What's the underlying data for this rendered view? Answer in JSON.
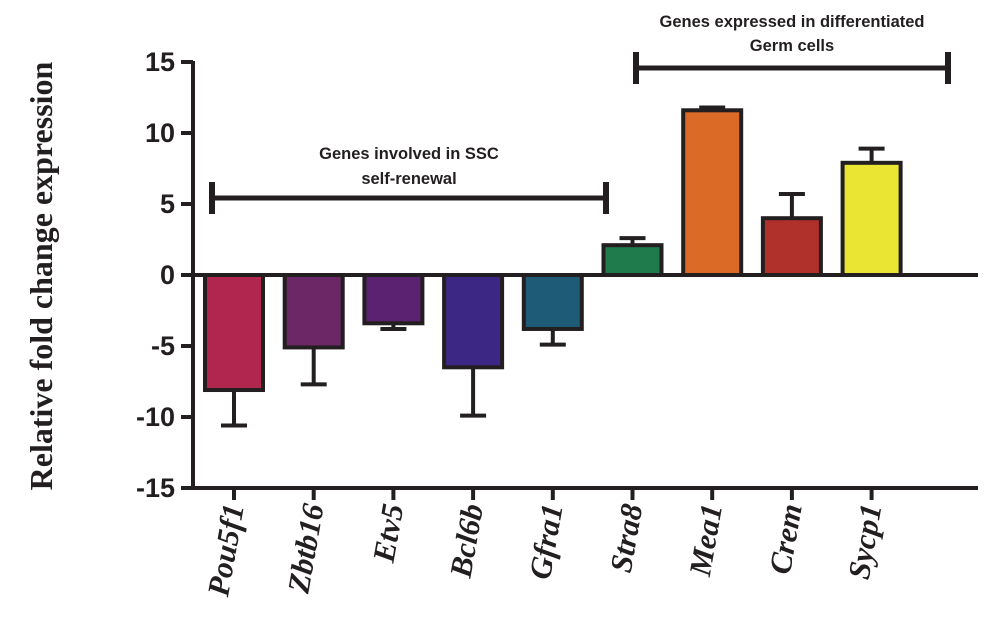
{
  "chart_data": {
    "type": "bar",
    "title": "",
    "xlabel": "",
    "ylabel": "Relative fold change expression",
    "ylim": [
      -15,
      15
    ],
    "yticks": [
      15,
      10,
      5,
      0,
      -5,
      -10,
      -15
    ],
    "categories": [
      "Pou5f1",
      "Zbtb16",
      "Etv5",
      "Bcl6b",
      "Gfra1",
      "Stra8",
      "Mea1",
      "Crem",
      "Sycp1"
    ],
    "values": [
      -8.1,
      -5.1,
      -3.4,
      -6.5,
      -3.8,
      2.1,
      11.6,
      4.0,
      7.9
    ],
    "errors": [
      2.5,
      2.6,
      0.4,
      3.4,
      1.1,
      0.5,
      0.2,
      1.7,
      1.0
    ],
    "colors": [
      "#b0264e",
      "#6c2767",
      "#5a2271",
      "#3c2884",
      "#1e5b76",
      "#1f7b4b",
      "#db6a26",
      "#b0302c",
      "#e9e532"
    ],
    "annotations": [
      {
        "lines": [
          "Genes involved in SSC",
          "self-renewal"
        ],
        "from": 0,
        "to": 4
      },
      {
        "lines": [
          "Genes expressed in differentiated",
          "Germ cells"
        ],
        "from": 5,
        "to": 8
      }
    ],
    "grid": false,
    "legend": "none"
  }
}
